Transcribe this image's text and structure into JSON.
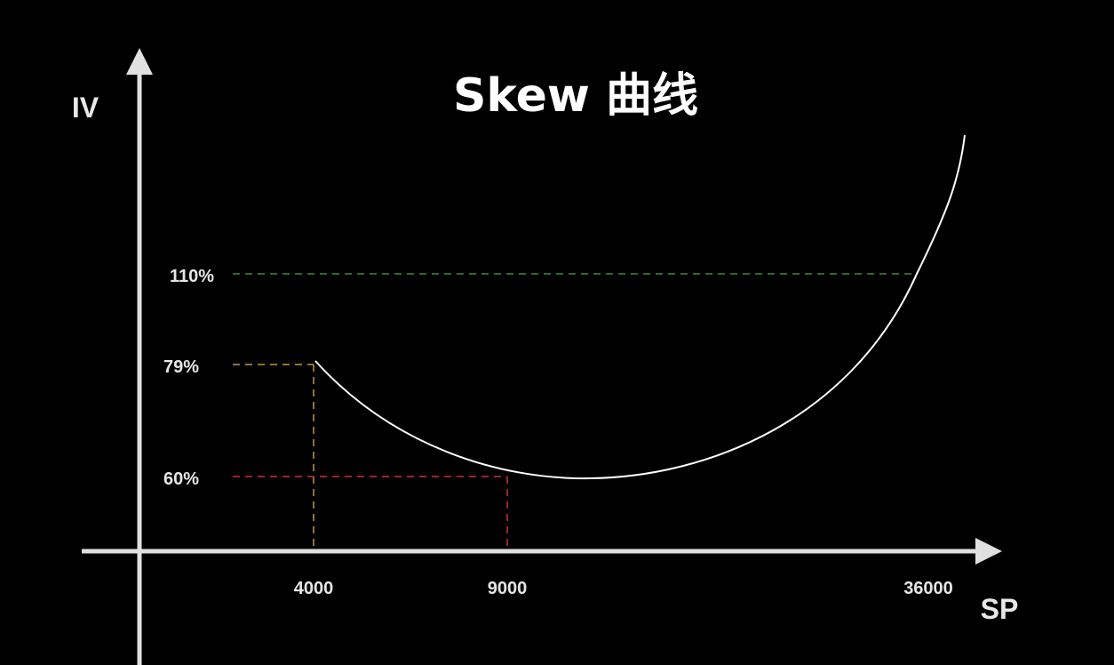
{
  "chart_data": {
    "type": "line",
    "title": "Skew 曲线",
    "xlabel": "SP",
    "ylabel": "IV",
    "x_ticks": [
      "4000",
      "9000",
      "36000"
    ],
    "y_ticks": [
      "110%",
      "79%",
      "60%"
    ],
    "series": [
      {
        "x": [
          4000,
          9000,
          36000
        ],
        "y": [
          79,
          60,
          110
        ]
      }
    ],
    "reference_lines": [
      {
        "label": "110%",
        "y": 110,
        "color": "#3c8c3c"
      },
      {
        "label": "79%",
        "y": 79,
        "x": 4000,
        "color": "#c8963c"
      },
      {
        "label": "60%",
        "y": 60,
        "x": 9000,
        "color": "#c83232"
      }
    ],
    "curve_color": "#ffffff",
    "axis_color": "#e0e0e0",
    "grid": false
  }
}
